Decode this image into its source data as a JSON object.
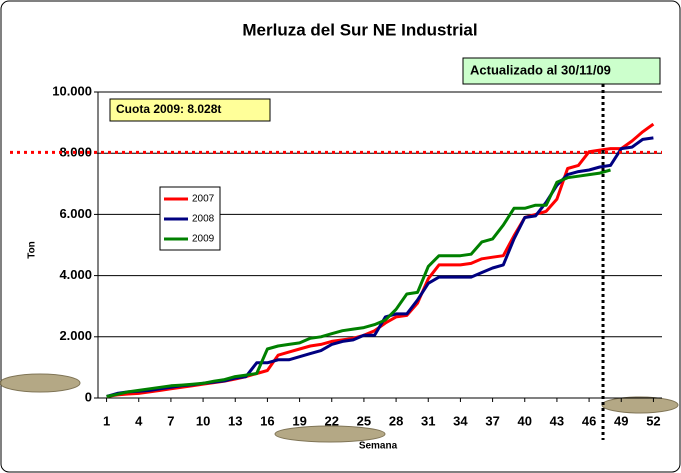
{
  "chart_data": {
    "type": "line",
    "title": "Merluza del Sur NE Industrial",
    "x_label": "Semana",
    "y_label": "Ton",
    "x": [
      1,
      2,
      3,
      4,
      5,
      6,
      7,
      8,
      9,
      10,
      11,
      12,
      13,
      14,
      15,
      16,
      17,
      18,
      19,
      20,
      21,
      22,
      23,
      24,
      25,
      26,
      27,
      28,
      29,
      30,
      31,
      32,
      33,
      34,
      35,
      36,
      37,
      38,
      39,
      40,
      41,
      42,
      43,
      44,
      45,
      46,
      47,
      48,
      49,
      50,
      51,
      52
    ],
    "series": [
      {
        "name": "2007",
        "color": "#ff0000",
        "values": [
          50,
          100,
          130,
          150,
          200,
          250,
          300,
          350,
          400,
          450,
          500,
          550,
          620,
          700,
          800,
          900,
          1400,
          1500,
          1600,
          1700,
          1750,
          1850,
          1900,
          1950,
          2050,
          2200,
          2450,
          2650,
          2700,
          3100,
          3900,
          4350,
          4350,
          4350,
          4400,
          4550,
          4600,
          4650,
          5300,
          5900,
          6000,
          6100,
          6500,
          7500,
          7600,
          8050,
          8100,
          8150,
          8150,
          8400,
          8700,
          8950
        ]
      },
      {
        "name": "2008",
        "color": "#000080",
        "values": [
          50,
          150,
          200,
          220,
          250,
          300,
          350,
          400,
          430,
          480,
          520,
          560,
          650,
          700,
          1150,
          1150,
          1250,
          1250,
          1350,
          1450,
          1550,
          1750,
          1850,
          1900,
          2050,
          2050,
          2650,
          2750,
          2750,
          3200,
          3750,
          3950,
          3950,
          3950,
          3950,
          4100,
          4250,
          4350,
          5200,
          5900,
          5950,
          6400,
          6950,
          7300,
          7400,
          7450,
          7550,
          7600,
          8150,
          8200,
          8450,
          8500
        ]
      },
      {
        "name": "2009",
        "color": "#008000",
        "values": [
          50,
          120,
          200,
          250,
          300,
          350,
          400,
          420,
          450,
          480,
          550,
          600,
          700,
          750,
          800,
          1600,
          1700,
          1750,
          1800,
          1950,
          2000,
          2100,
          2200,
          2250,
          2300,
          2400,
          2550,
          2900,
          3400,
          3450,
          4300,
          4650,
          4650,
          4650,
          4700,
          5100,
          5200,
          5650,
          6200,
          6200,
          6300,
          6300,
          7050,
          7200,
          7250,
          7300,
          7350,
          7450,
          null,
          null,
          null,
          null
        ]
      }
    ],
    "xlim": [
      0.2,
      52.8
    ],
    "xticks": [
      1,
      4,
      7,
      10,
      13,
      16,
      19,
      22,
      25,
      28,
      31,
      34,
      37,
      40,
      43,
      46,
      49,
      52
    ],
    "ylim": [
      0,
      10000
    ],
    "yticks": [
      0,
      {
        "value": 2000,
        "label": "2.000"
      },
      {
        "value": 4000,
        "label": "4.000"
      },
      {
        "value": 6000,
        "label": "6.000"
      },
      {
        "value": 8000,
        "label": "8.000"
      },
      {
        "value": 10000,
        "label": "10.000"
      }
    ],
    "grid": true,
    "quota": {
      "text": "Cuota 2009: 8.028t",
      "value": 8028,
      "color": "#ff0000"
    },
    "update": {
      "text": "Actualizado al 30/11/09",
      "x": 47.3
    }
  }
}
